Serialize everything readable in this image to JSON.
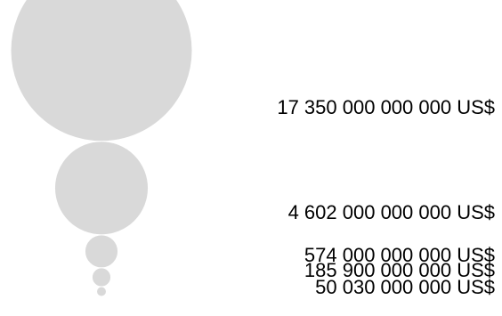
{
  "chart_data": {
    "type": "bubble",
    "title": "",
    "unit": "US$",
    "color": "#d9d9d9",
    "values": [
      17350000000000,
      4602000000000,
      574000000000,
      185900000000,
      50030000000
    ],
    "labels": [
      "17 350 000 000 000 US$",
      "4 602 000 000 000 US$",
      "574 000 000 000 US$",
      "185 900 000 000 US$",
      "50 030 000 000 US$"
    ]
  }
}
